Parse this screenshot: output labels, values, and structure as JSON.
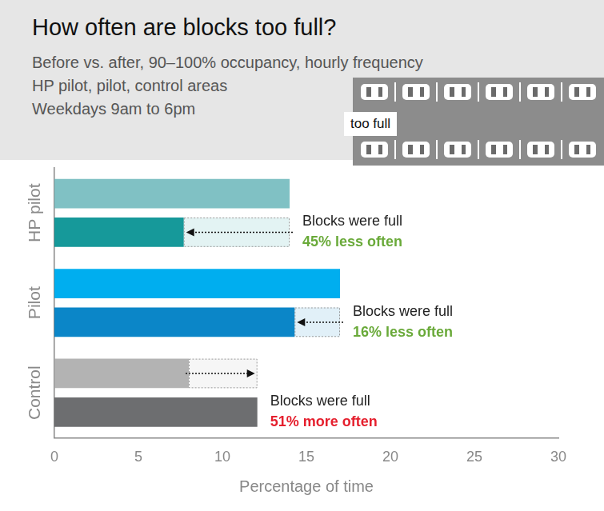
{
  "chart_data": {
    "type": "bar",
    "orientation": "horizontal",
    "title": "How often are blocks too full?",
    "subtitle": [
      "Before vs. after, 90–100% occupancy, hourly frequency",
      "HP pilot, pilot, control areas",
      "Weekdays 9am to 6pm"
    ],
    "icon_label": "too full",
    "categories": [
      "HP pilot",
      "Pilot",
      "Control"
    ],
    "series": [
      {
        "values": [
          14,
          17,
          8
        ],
        "colors": [
          "#80c1c4",
          "#00aeef",
          "#b3b3b3"
        ]
      },
      {
        "values": [
          7.7,
          14.3,
          12.08
        ],
        "colors": [
          "#16999a",
          "#0b86c8",
          "#6d6e70"
        ]
      }
    ],
    "annotations": [
      {
        "text": "Blocks were full",
        "change": "45% less often",
        "color": "#6aaa3a"
      },
      {
        "text": "Blocks were full",
        "change": "16% less often",
        "color": "#6aaa3a"
      },
      {
        "text": "Blocks were full",
        "change": "51% more often",
        "color": "#e5202e"
      }
    ],
    "xlabel": "Percentage of time",
    "xlim": [
      0,
      30
    ],
    "xticks": [
      0,
      5,
      10,
      15,
      20,
      25,
      30
    ],
    "grid": false
  }
}
